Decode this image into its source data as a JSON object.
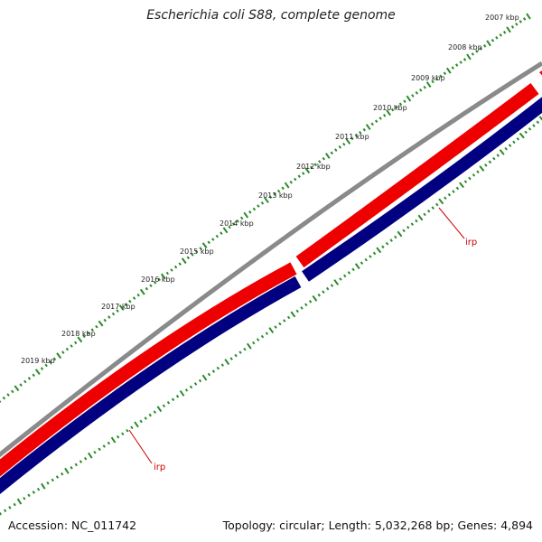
{
  "title": "Escherichia coli S88, complete genome",
  "footer": {
    "accession": "Accession: NC_011742",
    "summary": "Topology: circular; Length: 5,032,268 bp; Genes: 4,894"
  },
  "ruler": {
    "labels": [
      "2007 kbp",
      "2008 kbp",
      "2009 kbp",
      "2010 kbp",
      "2011 kbp",
      "2012 kbp",
      "2013 kbp",
      "2014 kbp",
      "2015 kbp",
      "2016 kbp",
      "2017 kbp",
      "2018 kbp",
      "2019 kbp"
    ]
  },
  "features": [
    {
      "label": "irp"
    },
    {
      "label": "irp"
    }
  ],
  "colors": {
    "backbone": "#8a8a8a",
    "forward_strand": "#ee0000",
    "reverse_strand": "#000080",
    "ruler_ticks": "#2a8a2a",
    "feature_label": "#cc0000"
  }
}
